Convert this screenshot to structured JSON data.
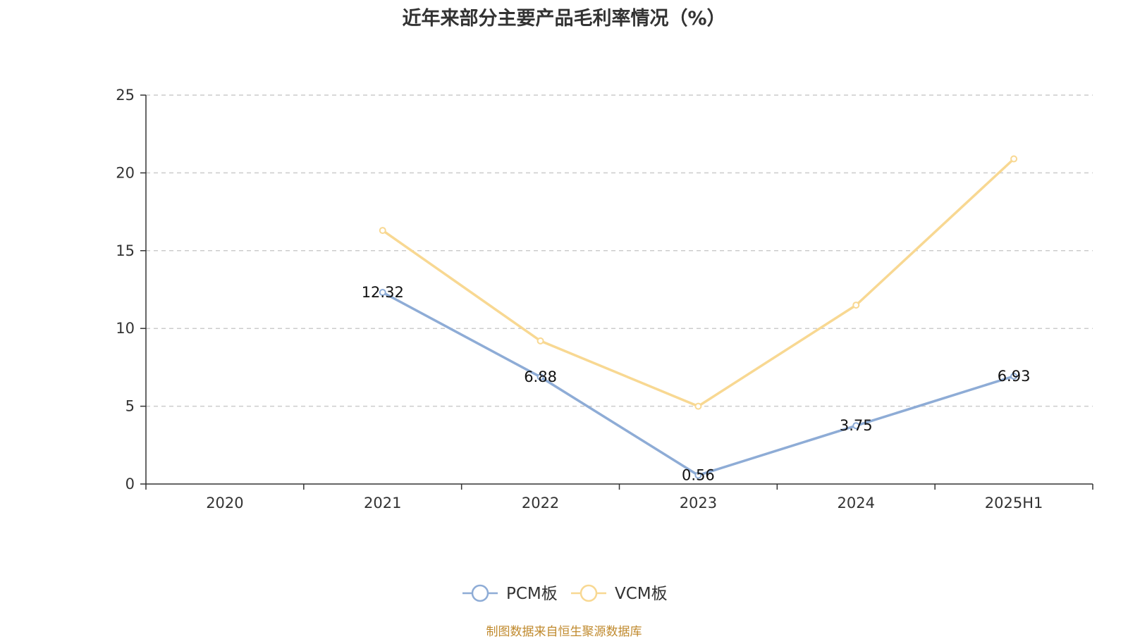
{
  "chart_data": {
    "type": "line",
    "title": "近年来部分主要产品毛利率情况（%）",
    "categories": [
      "2020",
      "2021",
      "2022",
      "2023",
      "2024",
      "2025H1"
    ],
    "ylim": [
      0,
      25
    ],
    "yticks": [
      0,
      5,
      10,
      15,
      20,
      25
    ],
    "grid": true,
    "legend_position": "bottom-center",
    "series": [
      {
        "name": "PCM板",
        "color": "#8eacd6",
        "values": [
          null,
          12.32,
          6.88,
          0.56,
          3.75,
          6.93
        ],
        "labels": [
          "",
          "12.32",
          "6.88",
          "0.56",
          "3.75",
          "6.93"
        ]
      },
      {
        "name": "VCM板",
        "color": "#f8d892",
        "values": [
          null,
          16.3,
          9.2,
          5.0,
          11.5,
          20.9
        ],
        "labels": [
          "",
          "",
          "",
          "",
          "",
          ""
        ]
      }
    ]
  },
  "source": "制图数据来自恒生聚源数据库"
}
